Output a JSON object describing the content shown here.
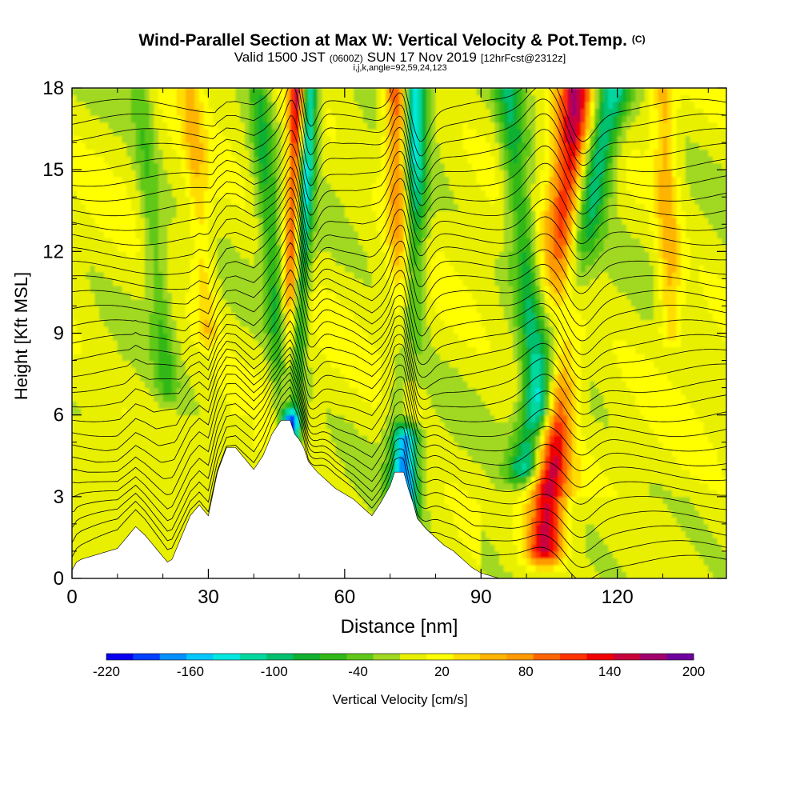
{
  "chart_data": {
    "type": "heatmap",
    "title": "Wind-Parallel Section at Max W: Vertical Velocity & Pot.Temp.",
    "title_mark": "(C)",
    "subtitle": {
      "valid_prefix": "Valid 1500 JST",
      "utc": "(0600Z)",
      "date": "SUN 17 Nov 2019",
      "forecast": "[12hrFcst@2312z]"
    },
    "subtitle2": "i,j,k,angle=92,59,24,123",
    "xlabel": "Distance [nm]",
    "ylabel": "Height [Kft MSL]",
    "xlim": [
      0,
      144
    ],
    "ylim": [
      0,
      18
    ],
    "xticks": [
      0,
      30,
      60,
      90,
      120
    ],
    "yticks": [
      0,
      3,
      6,
      9,
      12,
      15,
      18
    ],
    "colorbar": {
      "label": "Vertical Velocity [cm/s]",
      "tick_labels": [
        -220,
        -160,
        -100,
        -40,
        20,
        80,
        140,
        200
      ],
      "levels": [
        -220,
        -200,
        -180,
        -160,
        -140,
        -120,
        -100,
        -80,
        -60,
        -40,
        -20,
        0,
        20,
        40,
        60,
        80,
        100,
        120,
        140,
        160,
        180,
        200
      ],
      "colors": [
        "#0a00f0",
        "#0040ff",
        "#0090ff",
        "#00c8ff",
        "#00e8e0",
        "#00d8a0",
        "#00c070",
        "#10b030",
        "#30b818",
        "#60c818",
        "#a0d820",
        "#e8f000",
        "#ffff00",
        "#ffdd00",
        "#ffb400",
        "#ff9a00",
        "#ff6400",
        "#ff3200",
        "#f00000",
        "#c8003c",
        "#a0006e",
        "#6e00a0"
      ]
    },
    "terrain_profile": {
      "x": [
        0,
        1,
        2,
        6,
        10,
        12,
        14,
        16,
        18,
        20,
        21,
        22,
        24,
        26,
        28,
        30,
        32,
        34,
        36,
        38,
        40,
        42,
        44,
        46,
        47,
        48,
        49,
        50,
        51,
        52,
        54,
        56,
        58,
        60,
        62,
        64,
        66,
        68,
        70,
        71,
        72,
        73,
        74,
        75,
        76,
        78,
        80,
        82,
        84,
        86,
        88,
        90,
        92,
        94,
        144
      ],
      "y": [
        0.3,
        0.6,
        0.7,
        0.9,
        1.1,
        1.5,
        1.9,
        1.6,
        1.2,
        0.8,
        0.6,
        0.7,
        1.5,
        2.3,
        2.7,
        2.3,
        3.9,
        4.8,
        4.8,
        4.4,
        4.0,
        4.5,
        5.3,
        5.8,
        5.8,
        5.8,
        5.3,
        5.1,
        4.8,
        4.3,
        3.9,
        3.6,
        3.3,
        3.1,
        2.9,
        2.6,
        2.3,
        2.8,
        3.4,
        3.9,
        3.9,
        3.9,
        3.3,
        2.8,
        2.2,
        1.8,
        1.5,
        1.2,
        1.0,
        0.7,
        0.4,
        0.2,
        0.1,
        0.0,
        0.0
      ]
    },
    "updraft_bands": [
      {
        "x_top": 50,
        "x_bottom": 48,
        "z_top": 18,
        "z_bottom": 6.5,
        "width_nm": 2.0,
        "peak": 200
      },
      {
        "x_top": 72,
        "x_bottom": 74,
        "z_top": 18,
        "z_bottom": 6.0,
        "width_nm": 2.8,
        "peak": 170
      },
      {
        "x_top": 111,
        "x_bottom": 104,
        "z_top": 18,
        "z_bottom": 1.0,
        "width_nm": 4.0,
        "peak": 160
      },
      {
        "x_top": 130,
        "x_bottom": 132,
        "z_top": 18,
        "z_bottom": 9.0,
        "width_nm": 2.5,
        "peak": 60
      },
      {
        "x_top": 26,
        "x_bottom": 30,
        "z_top": 18,
        "z_bottom": 9.0,
        "width_nm": 2.5,
        "peak": 45
      }
    ],
    "downdraft_bands": [
      {
        "x_top": 52,
        "x_bottom": 48,
        "z_top": 18,
        "z_bottom": 5.0,
        "width_nm": 2.0,
        "peak": -200
      },
      {
        "x_top": 75,
        "x_bottom": 73,
        "z_top": 18,
        "z_bottom": 2.5,
        "width_nm": 3.0,
        "peak": -180
      },
      {
        "x_top": 119,
        "x_bottom": 100,
        "z_top": 18,
        "z_bottom": 4.0,
        "width_nm": 4.0,
        "peak": -130
      },
      {
        "x_top": 96,
        "x_bottom": 103,
        "z_top": 18,
        "z_bottom": 6.0,
        "width_nm": 3.0,
        "peak": -80
      },
      {
        "x_top": 15,
        "x_bottom": 21,
        "z_top": 18,
        "z_bottom": 7.0,
        "width_nm": 2.5,
        "peak": -45
      },
      {
        "x_top": 41,
        "x_bottom": 47,
        "z_top": 18,
        "z_bottom": 6.0,
        "width_nm": 2.5,
        "peak": -70
      }
    ],
    "theta_isentropes": {
      "count": 32,
      "base_height_kft": 0.6,
      "spacing_kft": 0.54
    }
  }
}
